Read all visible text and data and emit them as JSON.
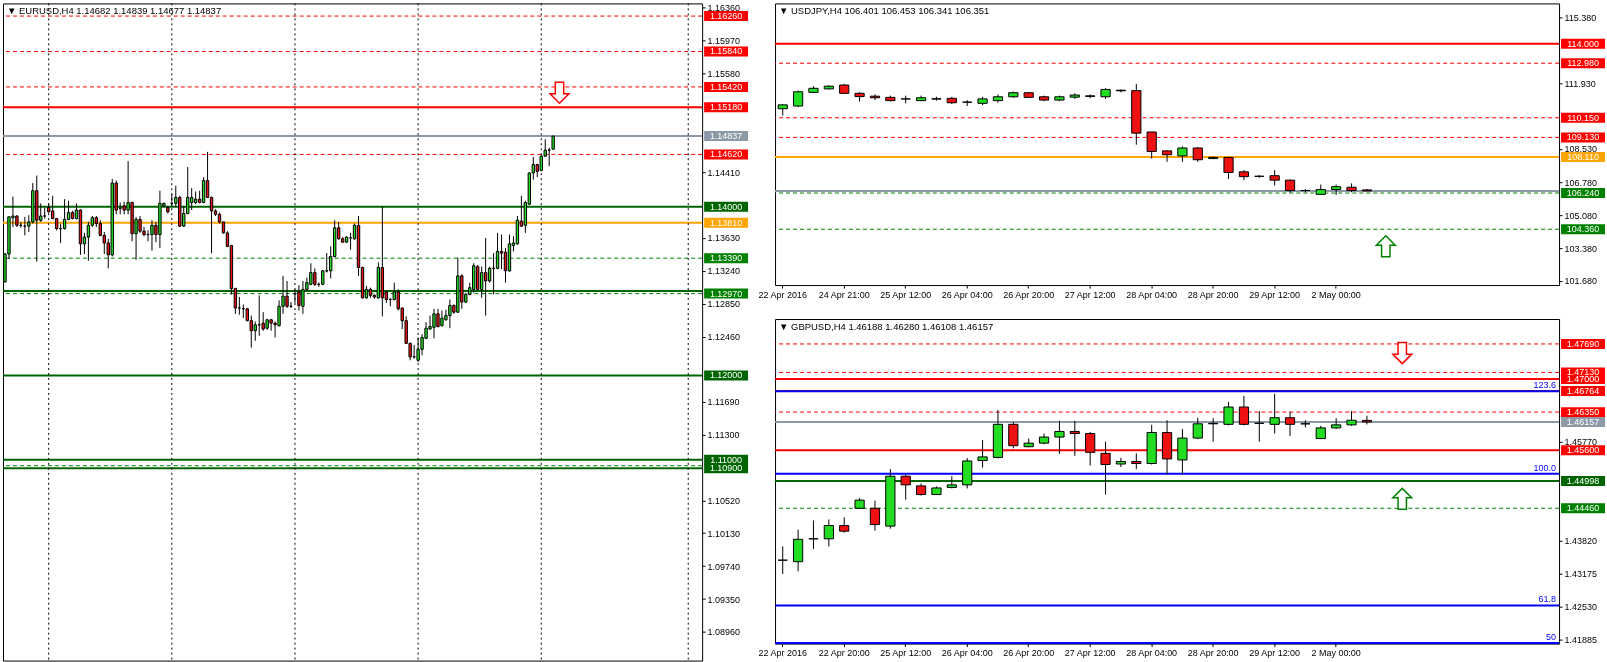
{
  "chart_data": [
    {
      "type": "candlestick",
      "title": "▼ EURUSD,H4 1.14682 1.14839 1.14677 1.14837",
      "categories": [
        null,
        null,
        null,
        null,
        null,
        null,
        null,
        null,
        null,
        null,
        null,
        null,
        null,
        null,
        null,
        null,
        null,
        null,
        null,
        null,
        null,
        null,
        null,
        null,
        null,
        null,
        null,
        null,
        null,
        null,
        null,
        null,
        null,
        null,
        null,
        null,
        null,
        null,
        null,
        null,
        null,
        null,
        null,
        null,
        null,
        null,
        null,
        null,
        null,
        null,
        null,
        null,
        null,
        null,
        null,
        null,
        null,
        null,
        null,
        null,
        null,
        null,
        null,
        null,
        null,
        null,
        null,
        null,
        null,
        null,
        null,
        null,
        null,
        null,
        null,
        null,
        null,
        null,
        null,
        null,
        null,
        null,
        null,
        null,
        null,
        null,
        null,
        null,
        null,
        null,
        null,
        null,
        null,
        null,
        null,
        null,
        null,
        null,
        null,
        null,
        null,
        null,
        null,
        null,
        null,
        null,
        null,
        null,
        null,
        null,
        null,
        null,
        null,
        null,
        null,
        null,
        null,
        null,
        null,
        null,
        null,
        null,
        null,
        null,
        null,
        null,
        null,
        null,
        null,
        null,
        null,
        null,
        null,
        null,
        null,
        null,
        null,
        null,
        null,
        null,
        null,
        null,
        null,
        null,
        null,
        null,
        null,
        null,
        null,
        null,
        null,
        null,
        null,
        null,
        null,
        null,
        null,
        null,
        null,
        null,
        null,
        null,
        null,
        null,
        null,
        null,
        null,
        null,
        null,
        null,
        null,
        null,
        null,
        null,
        null,
        null
      ],
      "ohlc": [
        [
          1.1311,
          1.1345,
          1.131,
          1.1344
        ],
        [
          1.1344,
          1.1389,
          1.1338,
          1.1388
        ],
        [
          1.1387,
          1.1412,
          1.1376,
          1.1389
        ],
        [
          1.1389,
          1.139,
          1.1376,
          1.1378
        ],
        [
          1.1378,
          1.1382,
          1.1375,
          1.1378
        ],
        [
          1.1377,
          1.1388,
          1.1366,
          1.1377
        ],
        [
          1.1377,
          1.139,
          1.137,
          1.1382
        ],
        [
          1.1382,
          1.1428,
          1.138,
          1.1419
        ],
        [
          1.1419,
          1.1437,
          1.1335,
          1.1384
        ],
        [
          1.1384,
          1.1404,
          1.1382,
          1.1389
        ],
        [
          1.1389,
          1.1399,
          1.1386,
          1.1389
        ],
        [
          1.1399,
          1.1404,
          1.1393,
          1.1394
        ],
        [
          1.1395,
          1.1413,
          1.1385,
          1.1386
        ],
        [
          1.1386,
          1.1386,
          1.1372,
          1.1374
        ],
        [
          1.1374,
          1.138,
          1.1357,
          1.1374
        ],
        [
          1.1374,
          1.1409,
          1.1373,
          1.1385
        ],
        [
          1.1385,
          1.1407,
          1.1384,
          1.1393
        ],
        [
          1.1393,
          1.1395,
          1.1385,
          1.1386
        ],
        [
          1.1386,
          1.1404,
          1.1385,
          1.1396
        ],
        [
          1.1396,
          1.1397,
          1.1343,
          1.1356
        ],
        [
          1.1356,
          1.1369,
          1.1344,
          1.1364
        ],
        [
          1.1364,
          1.1382,
          1.1336,
          1.1378
        ],
        [
          1.1378,
          1.1389,
          1.1376,
          1.1387
        ],
        [
          1.1387,
          1.1389,
          1.1376,
          1.138
        ],
        [
          1.138,
          1.1384,
          1.1365,
          1.1366
        ],
        [
          1.1366,
          1.137,
          1.1344,
          1.1357
        ],
        [
          1.1357,
          1.1362,
          1.1327,
          1.1343
        ],
        [
          1.1343,
          1.1433,
          1.1341,
          1.1428
        ],
        [
          1.1428,
          1.1431,
          1.1391,
          1.1396
        ],
        [
          1.1398,
          1.1405,
          1.1391,
          1.1398
        ],
        [
          1.1401,
          1.1406,
          1.1391,
          1.1396
        ],
        [
          1.1396,
          1.1454,
          1.1391,
          1.1405
        ],
        [
          1.1405,
          1.1406,
          1.1359,
          1.1368
        ],
        [
          1.1368,
          1.1388,
          1.1337,
          1.1385
        ],
        [
          1.1385,
          1.1389,
          1.1369,
          1.1371
        ],
        [
          1.1371,
          1.1376,
          1.1365,
          1.1367
        ],
        [
          1.1367,
          1.1372,
          1.1359,
          1.1367
        ],
        [
          1.1367,
          1.1384,
          1.1348,
          1.1378
        ],
        [
          1.1378,
          1.1382,
          1.1358,
          1.1367
        ],
        [
          1.1367,
          1.1419,
          1.1351,
          1.1404
        ],
        [
          1.1401,
          1.1405,
          1.14,
          1.1404
        ],
        [
          1.1399,
          1.1401,
          1.1392,
          1.1394
        ],
        [
          1.1404,
          1.1415,
          1.14,
          1.1404
        ],
        [
          1.1404,
          1.1425,
          1.14,
          1.1411
        ],
        [
          1.1411,
          1.1413,
          1.1376,
          1.1377
        ],
        [
          1.1377,
          1.1401,
          1.1376,
          1.1392
        ],
        [
          1.1392,
          1.1447,
          1.1391,
          1.1411
        ],
        [
          1.1405,
          1.1422,
          1.1396,
          1.1411
        ],
        [
          1.1405,
          1.1418,
          1.1403,
          1.1409
        ],
        [
          1.1409,
          1.1419,
          1.1404,
          1.1405
        ],
        [
          1.1405,
          1.1435,
          1.1404,
          1.1431
        ],
        [
          1.1431,
          1.1465,
          1.1411,
          1.1411
        ],
        [
          1.1411,
          1.1412,
          1.1345,
          1.1395
        ],
        [
          1.1395,
          1.1397,
          1.1389,
          1.1391
        ],
        [
          1.1391,
          1.1393,
          1.138,
          1.1382
        ],
        [
          1.1382,
          1.1382,
          1.1368,
          1.1369
        ],
        [
          1.1369,
          1.1371,
          1.1352,
          1.1353
        ],
        [
          1.1354,
          1.1355,
          1.1296,
          1.1303
        ],
        [
          1.1303,
          1.1304,
          1.1273,
          1.128
        ],
        [
          1.128,
          1.1293,
          1.1272,
          1.128
        ],
        [
          1.1279,
          1.1284,
          1.1268,
          1.1279
        ],
        [
          1.1279,
          1.128,
          1.1264,
          1.1265
        ],
        [
          1.1265,
          1.1271,
          1.1233,
          1.1253
        ],
        [
          1.1253,
          1.1264,
          1.1241,
          1.126
        ],
        [
          1.126,
          1.1295,
          1.1247,
          1.126
        ],
        [
          1.1262,
          1.1275,
          1.1253,
          1.1255
        ],
        [
          1.1256,
          1.1267,
          1.1254,
          1.1266
        ],
        [
          1.1266,
          1.1267,
          1.1253,
          1.1262
        ],
        [
          1.1262,
          1.1264,
          1.1245,
          1.126
        ],
        [
          1.1259,
          1.1289,
          1.1258,
          1.1282
        ],
        [
          1.1282,
          1.1318,
          1.1273,
          1.1294
        ],
        [
          1.1294,
          1.1312,
          1.128,
          1.1282
        ],
        [
          1.1282,
          1.1287,
          1.128,
          1.1282
        ],
        [
          1.1297,
          1.1302,
          1.1286,
          1.1297
        ],
        [
          1.1299,
          1.1307,
          1.1277,
          1.1283
        ],
        [
          1.1282,
          1.1312,
          1.1273,
          1.1302
        ],
        [
          1.1302,
          1.1316,
          1.13,
          1.131
        ],
        [
          1.1308,
          1.1333,
          1.1307,
          1.1322
        ],
        [
          1.1322,
          1.1327,
          1.1306,
          1.1308
        ],
        [
          1.1308,
          1.131,
          1.1305,
          1.1308
        ],
        [
          1.1308,
          1.1325,
          1.1307,
          1.1324
        ],
        [
          1.1324,
          1.1345,
          1.1322,
          1.1324
        ],
        [
          1.1324,
          1.1353,
          1.1315,
          1.1341
        ],
        [
          1.1341,
          1.1384,
          1.134,
          1.1375
        ],
        [
          1.1375,
          1.1382,
          1.1361,
          1.1362
        ],
        [
          1.1362,
          1.1364,
          1.1357,
          1.1358
        ],
        [
          1.1358,
          1.1365,
          1.1357,
          1.1364
        ],
        [
          1.1363,
          1.1369,
          1.1349,
          1.1363
        ],
        [
          1.1362,
          1.138,
          1.1361,
          1.1378
        ],
        [
          1.1378,
          1.1389,
          1.1318,
          1.1328
        ],
        [
          1.1328,
          1.1329,
          1.1291,
          1.1292
        ],
        [
          1.1292,
          1.1306,
          1.1291,
          1.1302
        ],
        [
          1.1302,
          1.1304,
          1.1292,
          1.1295
        ],
        [
          1.1295,
          1.1296,
          1.1291,
          1.1293
        ],
        [
          1.1292,
          1.1334,
          1.1291,
          1.1328
        ],
        [
          1.1328,
          1.14,
          1.127,
          1.1292
        ],
        [
          1.1299,
          1.13,
          1.1286,
          1.129
        ],
        [
          1.129,
          1.1292,
          1.1282,
          1.129
        ],
        [
          1.129,
          1.131,
          1.1289,
          1.1299
        ],
        [
          1.1299,
          1.1302,
          1.1277,
          1.1279
        ],
        [
          1.128,
          1.128,
          1.1255,
          1.1265
        ],
        [
          1.1265,
          1.127,
          1.1238,
          1.1238
        ],
        [
          1.1238,
          1.1239,
          1.1218,
          1.1222
        ],
        [
          1.1222,
          1.1236,
          1.122,
          1.1222
        ],
        [
          1.1218,
          1.1245,
          1.1216,
          1.1231
        ],
        [
          1.1231,
          1.1249,
          1.1224,
          1.1245
        ],
        [
          1.1244,
          1.1263,
          1.1243,
          1.1256
        ],
        [
          1.1255,
          1.1271,
          1.1254,
          1.1258
        ],
        [
          1.1257,
          1.1279,
          1.1244,
          1.1273
        ],
        [
          1.1273,
          1.1279,
          1.1257,
          1.1258
        ],
        [
          1.1259,
          1.1277,
          1.1258,
          1.1268
        ],
        [
          1.1266,
          1.1278,
          1.1265,
          1.1271
        ],
        [
          1.1271,
          1.129,
          1.1256,
          1.1283
        ],
        [
          1.1283,
          1.1284,
          1.1273,
          1.1275
        ],
        [
          1.1275,
          1.134,
          1.1274,
          1.1318
        ],
        [
          1.1318,
          1.132,
          1.1279,
          1.1287
        ],
        [
          1.1287,
          1.1298,
          1.1286,
          1.1296
        ],
        [
          1.1296,
          1.131,
          1.1295,
          1.1304
        ],
        [
          1.1302,
          1.1333,
          1.1298,
          1.133
        ],
        [
          1.1329,
          1.1331,
          1.1301,
          1.1302
        ],
        [
          1.1302,
          1.1329,
          1.1292,
          1.1322
        ],
        [
          1.1322,
          1.1363,
          1.1271,
          1.1312
        ],
        [
          1.1312,
          1.1329,
          1.131,
          1.1327
        ],
        [
          1.1327,
          1.1345,
          1.1296,
          1.1327
        ],
        [
          1.1327,
          1.1369,
          1.1326,
          1.1347
        ],
        [
          1.1347,
          1.1367,
          1.1326,
          1.1345
        ],
        [
          1.1346,
          1.1351,
          1.131,
          1.1324
        ],
        [
          1.1324,
          1.1367,
          1.1323,
          1.1356
        ],
        [
          1.1354,
          1.1365,
          1.1347,
          1.1357
        ],
        [
          1.1356,
          1.1389,
          1.1355,
          1.1384
        ],
        [
          1.1383,
          1.1413,
          1.1376,
          1.1377
        ],
        [
          1.1378,
          1.1407,
          1.1369,
          1.1405
        ],
        [
          1.1403,
          1.1441,
          1.1402,
          1.144
        ],
        [
          1.144,
          1.1459,
          1.1432,
          1.145
        ],
        [
          1.145,
          1.1451,
          1.1435,
          1.1442
        ],
        [
          1.1443,
          1.1461,
          1.1442,
          1.146
        ],
        [
          1.146,
          1.148,
          1.1459,
          1.1467
        ],
        [
          1.1467,
          1.147,
          1.1448,
          1.1467
        ],
        [
          1.14682,
          1.14839,
          1.14677,
          1.14837
        ],
        null,
        null,
        null,
        null,
        null,
        null,
        null,
        null,
        null,
        null,
        null,
        null,
        null,
        null,
        null,
        null,
        null,
        null,
        null,
        null,
        null,
        null,
        null,
        null,
        null,
        null,
        null,
        null,
        null,
        null,
        null,
        null,
        null,
        null,
        null,
        null,
        null
      ],
      "colors": [
        "#22dd22",
        "#22dd22",
        "#22dd22",
        "#ee1111",
        "#000000",
        "#000000",
        "#22dd22",
        "#22dd22",
        "#ee1111",
        "#22dd22",
        "#000000",
        "#ee1111",
        "#ee1111",
        "#ee1111",
        "#000000",
        "#22dd22",
        "#22dd22",
        "#ee1111",
        "#22dd22",
        "#ee1111",
        "#22dd22",
        "#22dd22",
        "#22dd22",
        "#ee1111",
        "#ee1111",
        "#ee1111",
        "#ee1111",
        "#22dd22",
        "#ee1111",
        "#000000",
        "#ee1111",
        "#22dd22",
        "#ee1111",
        "#22dd22",
        "#ee1111",
        "#ee1111",
        "#000000",
        "#22dd22",
        "#ee1111",
        "#22dd22",
        "#22dd22",
        "#ee1111",
        "#000000",
        "#22dd22",
        "#ee1111",
        "#22dd22",
        "#22dd22",
        "#22dd22",
        "#22dd22",
        "#ee1111",
        "#22dd22",
        "#ee1111",
        "#ee1111",
        "#ee1111",
        "#ee1111",
        "#ee1111",
        "#ee1111",
        "#ee1111",
        "#ee1111",
        "#000000",
        "#000000",
        "#ee1111",
        "#ee1111",
        "#22dd22",
        "#000000",
        "#ee1111",
        "#22dd22",
        "#ee1111",
        "#ee1111",
        "#22dd22",
        "#22dd22",
        "#ee1111",
        "#000000",
        "#000000",
        "#ee1111",
        "#22dd22",
        "#22dd22",
        "#22dd22",
        "#ee1111",
        "#000000",
        "#22dd22",
        "#000000",
        "#22dd22",
        "#22dd22",
        "#ee1111",
        "#ee1111",
        "#22dd22",
        "#000000",
        "#22dd22",
        "#ee1111",
        "#ee1111",
        "#22dd22",
        "#ee1111",
        "#ee1111",
        "#22dd22",
        "#ee1111",
        "#ee1111",
        "#000000",
        "#22dd22",
        "#ee1111",
        "#ee1111",
        "#ee1111",
        "#ee1111",
        "#000000",
        "#22dd22",
        "#22dd22",
        "#22dd22",
        "#22dd22",
        "#22dd22",
        "#ee1111",
        "#22dd22",
        "#22dd22",
        "#22dd22",
        "#ee1111",
        "#22dd22",
        "#ee1111",
        "#22dd22",
        "#22dd22",
        "#22dd22",
        "#ee1111",
        "#22dd22",
        "#ee1111",
        "#22dd22",
        "#000000",
        "#22dd22",
        "#ee1111",
        "#ee1111",
        "#22dd22",
        "#22dd22",
        "#22dd22",
        "#ee1111",
        "#22dd22",
        "#22dd22",
        "#22dd22",
        "#ee1111",
        "#22dd22",
        "#22dd22",
        "#000000",
        "#22dd22",
        null,
        null,
        null,
        null,
        null,
        null,
        null,
        null,
        null,
        null,
        null,
        null,
        null,
        null,
        null,
        null,
        null,
        null,
        null,
        null,
        null,
        null,
        null,
        null,
        null,
        null,
        null,
        null,
        null,
        null,
        null,
        null,
        null,
        null,
        null,
        null,
        null
      ],
      "ylim": [
        1.0862,
        1.1641
      ],
      "yticks": [
        {
          "value": 1.1636,
          "label": "1.16360"
        },
        {
          "value": 1.1597,
          "label": "1.15970"
        },
        {
          "value": 1.1558,
          "label": "1.15580"
        },
        {
          "value": 1.1441,
          "label": "1.14410"
        },
        {
          "value": 1.1363,
          "label": "1.13630"
        },
        {
          "value": 1.1324,
          "label": "1.13240"
        },
        {
          "value": 1.1285,
          "label": "1.12850"
        },
        {
          "value": 1.1246,
          "label": "1.12460"
        },
        {
          "value": 1.1169,
          "label": "1.11690"
        },
        {
          "value": 1.113,
          "label": "1.11300"
        },
        {
          "value": 1.1052,
          "label": "1.10520"
        },
        {
          "value": 1.1013,
          "label": "1.10130"
        },
        {
          "value": 1.0974,
          "label": "1.09740"
        },
        {
          "value": 1.0935,
          "label": "1.09350"
        },
        {
          "value": 1.0896,
          "label": "1.08960"
        }
      ],
      "tick_labels": "y",
      "ref_lines": [
        {
          "axis": "y",
          "value": 1.1626,
          "label": "1.16260",
          "color": "#ff0000",
          "line_style": "dashed"
        },
        {
          "axis": "y",
          "value": 1.1584,
          "label": "1.15840",
          "color": "#ff0000",
          "line_style": "dashed"
        },
        {
          "axis": "y",
          "value": 1.1542,
          "label": "1.15420",
          "color": "#ff0000",
          "line_style": "dashed"
        },
        {
          "axis": "y",
          "value": 1.1518,
          "label": "1.15180",
          "color": "#ff0000",
          "line_style": "solid"
        },
        {
          "axis": "y",
          "value": 1.14837,
          "label": "1.14837",
          "color": "#8c9aa8",
          "line_style": "solid"
        },
        {
          "axis": "y",
          "value": 1.1462,
          "label": "1.14620",
          "color": "#ff0000",
          "line_style": "dashed"
        },
        {
          "axis": "y",
          "value": 1.14,
          "label": "1.14000",
          "color": "#006400",
          "line_style": "solid"
        },
        {
          "axis": "y",
          "value": 1.1381,
          "label": "1.13810",
          "color": "#ffa500",
          "line_style": "solid"
        },
        {
          "axis": "y",
          "value": 1.1339,
          "label": "1.13390",
          "color": "#008000",
          "line_style": "dashed"
        },
        {
          "axis": "y",
          "value": 1.13,
          "color": "#006400",
          "line_style": "solid"
        },
        {
          "axis": "y",
          "value": 1.1297,
          "label": "1.12970",
          "color": "#008000",
          "line_style": "dashed"
        },
        {
          "axis": "y",
          "value": 1.12,
          "label": "1.12000",
          "color": "#006400",
          "line_style": "solid"
        },
        {
          "axis": "y",
          "value": 1.11,
          "label": "1.11000",
          "color": "#006400",
          "line_style": "solid"
        },
        {
          "axis": "y",
          "value": 1.1093,
          "color": "#008000",
          "line_style": "dashed"
        },
        {
          "axis": "y",
          "value": 1.109,
          "label": "1.10900",
          "color": "#006400",
          "line_style": "solid"
        }
      ]
    },
    {
      "type": "candlestick",
      "title": "▼ USDJPY,H4 106.401 106.453 106.341 106.351",
      "categories": [
        "22 Apr 2016",
        null,
        null,
        null,
        "24 Apr 21:00",
        null,
        null,
        null,
        "25 Apr 12:00",
        null,
        null,
        null,
        "26 Apr 04:00",
        null,
        null,
        null,
        "26 Apr 20:00",
        null,
        null,
        null,
        "27 Apr 12:00",
        null,
        null,
        null,
        "28 Apr 04:00",
        null,
        null,
        null,
        "28 Apr 20:00",
        null,
        null,
        null,
        "29 Apr 12:00",
        null,
        null,
        null,
        "2 May 00:00",
        null,
        null,
        null,
        null,
        null,
        null,
        null,
        null,
        null,
        null,
        null,
        null,
        null,
        null
      ],
      "ohlc": [
        [
          110.62,
          110.85,
          110.27,
          110.82
        ],
        [
          110.76,
          111.56,
          110.7,
          111.5
        ],
        [
          111.47,
          111.79,
          111.44,
          111.68
        ],
        [
          111.65,
          111.85,
          111.62,
          111.79
        ],
        [
          111.85,
          111.91,
          111.39,
          111.42
        ],
        [
          111.42,
          111.48,
          110.99,
          111.25
        ],
        [
          111.27,
          111.36,
          111.07,
          111.19
        ],
        [
          111.21,
          111.3,
          111.01,
          111.04
        ],
        [
          111.13,
          111.3,
          110.9,
          111.13
        ],
        [
          111.04,
          111.3,
          111.01,
          111.19
        ],
        [
          111.12,
          111.24,
          111.04,
          111.14
        ],
        [
          111.16,
          111.24,
          110.87,
          110.93
        ],
        [
          110.96,
          111.07,
          110.76,
          110.96
        ],
        [
          110.9,
          111.24,
          110.81,
          111.13
        ],
        [
          111.04,
          111.36,
          110.93,
          111.24
        ],
        [
          111.24,
          111.51,
          111.19,
          111.45
        ],
        [
          111.45,
          111.48,
          111.19,
          111.21
        ],
        [
          111.24,
          111.3,
          111.01,
          111.07
        ],
        [
          111.07,
          111.3,
          111.01,
          111.24
        ],
        [
          111.22,
          111.42,
          111.13,
          111.33
        ],
        [
          111.26,
          111.36,
          111.16,
          111.29
        ],
        [
          111.24,
          111.7,
          111.13,
          111.62
        ],
        [
          111.55,
          111.62,
          111.47,
          111.58
        ],
        [
          111.56,
          111.91,
          108.75,
          109.35
        ],
        [
          109.41,
          109.41,
          108.03,
          108.4
        ],
        [
          108.43,
          108.46,
          107.86,
          108.23
        ],
        [
          108.17,
          108.66,
          107.86,
          108.58
        ],
        [
          108.58,
          108.63,
          107.86,
          107.97
        ],
        [
          108.03,
          108.14,
          108.0,
          108.09
        ],
        [
          108.09,
          108.12,
          106.97,
          107.31
        ],
        [
          107.34,
          107.43,
          106.91,
          107.09
        ],
        [
          107.11,
          107.17,
          107.03,
          107.11
        ],
        [
          107.14,
          107.43,
          106.63,
          106.91
        ],
        [
          106.91,
          106.94,
          106.26,
          106.37
        ],
        [
          106.37,
          106.45,
          106.28,
          106.37
        ],
        [
          106.17,
          106.68,
          106.17,
          106.42
        ],
        [
          106.42,
          106.68,
          106.14,
          106.57
        ],
        [
          106.54,
          106.74,
          106.28,
          106.37
        ],
        [
          106.401,
          106.453,
          106.341,
          106.351
        ],
        null,
        null,
        null,
        null,
        null,
        null,
        null,
        null,
        null,
        null,
        null,
        null
      ],
      "colors": [
        "#22dd22",
        "#22dd22",
        "#22dd22",
        "#22dd22",
        "#ee1111",
        "#ee1111",
        "#ee1111",
        "#ee1111",
        "#000000",
        "#22dd22",
        "#22dd22",
        "#ee1111",
        "#000000",
        "#22dd22",
        "#22dd22",
        "#22dd22",
        "#ee1111",
        "#ee1111",
        "#22dd22",
        "#22dd22",
        "#22dd22",
        "#22dd22",
        "#22dd22",
        "#ee1111",
        "#ee1111",
        "#ee1111",
        "#22dd22",
        "#ee1111",
        "#22dd22",
        "#ee1111",
        "#ee1111",
        "#000000",
        "#ee1111",
        "#ee1111",
        "#000000",
        "#22dd22",
        "#22dd22",
        "#ee1111",
        "#ee1111",
        null,
        null,
        null,
        null,
        null,
        null,
        null,
        null,
        null,
        null,
        null,
        null
      ],
      "ylim": [
        101.46,
        116.09
      ],
      "yticks": [
        {
          "value": 115.38,
          "label": "115.380"
        },
        {
          "value": 111.93,
          "label": "111.930"
        },
        {
          "value": 108.53,
          "label": "108.530"
        },
        {
          "value": 106.78,
          "label": "106.780"
        },
        {
          "value": 105.08,
          "label": "105.080"
        },
        {
          "value": 103.38,
          "label": "103.380"
        },
        {
          "value": 101.68,
          "label": "101.680"
        }
      ],
      "ref_lines": [
        {
          "axis": "y",
          "value": 114.0,
          "label": "114.000",
          "color": "#ff0000",
          "line_style": "solid"
        },
        {
          "axis": "y",
          "value": 112.98,
          "label": "112.980",
          "color": "#ff0000",
          "line_style": "dashed"
        },
        {
          "axis": "y",
          "value": 110.15,
          "label": "110.150",
          "color": "#ff0000",
          "line_style": "dashed"
        },
        {
          "axis": "y",
          "value": 109.13,
          "label": "109.130",
          "color": "#ff0000",
          "line_style": "dashed"
        },
        {
          "axis": "y",
          "value": 108.11,
          "label": "108.110",
          "color": "#ffa500",
          "line_style": "solid"
        },
        {
          "axis": "y",
          "value": 106.351,
          "color": "#8c9aa8",
          "line_style": "solid"
        },
        {
          "axis": "y",
          "value": 106.24,
          "label": "106.240",
          "color": "#008000",
          "line_style": "dashed"
        },
        {
          "axis": "y",
          "value": 104.36,
          "label": "104.360",
          "color": "#008000",
          "line_style": "dashed"
        }
      ]
    },
    {
      "type": "candlestick",
      "title": "▼ GBPUSD,H4 1.46188 1.46280 1.46108 1.46157",
      "categories": [
        "22 Apr 2016",
        null,
        null,
        null,
        "22 Apr 20:00",
        null,
        null,
        null,
        "25 Apr 12:00",
        null,
        null,
        null,
        "26 Apr 04:00",
        null,
        null,
        null,
        "26 Apr 20:00",
        null,
        null,
        null,
        "27 Apr 12:00",
        null,
        null,
        null,
        "28 Apr 04:00",
        null,
        null,
        null,
        "28 Apr 20:00",
        null,
        null,
        null,
        "29 Apr 12:00",
        null,
        null,
        null,
        "2 May 00:00",
        null,
        null,
        null,
        null,
        null,
        null,
        null,
        null,
        null,
        null,
        null,
        null,
        null,
        null
      ],
      "ohlc": [
        [
          1.4344,
          1.4371,
          1.4317,
          1.4344
        ],
        [
          1.4341,
          1.4404,
          1.4322,
          1.4385
        ],
        [
          1.4386,
          1.4422,
          1.4366,
          1.4386
        ],
        [
          1.4386,
          1.4424,
          1.4371,
          1.4412
        ],
        [
          1.4412,
          1.4428,
          1.4398,
          1.4401
        ],
        [
          1.4446,
          1.4466,
          1.4445,
          1.4462
        ],
        [
          1.4446,
          1.4461,
          1.4402,
          1.4414
        ],
        [
          1.4411,
          1.4523,
          1.4406,
          1.4509
        ],
        [
          1.4509,
          1.4512,
          1.4463,
          1.4492
        ],
        [
          1.449,
          1.4495,
          1.4471,
          1.4473
        ],
        [
          1.4473,
          1.4489,
          1.4472,
          1.4486
        ],
        [
          1.4487,
          1.4509,
          1.4485,
          1.4492
        ],
        [
          1.4492,
          1.4545,
          1.4485,
          1.4539
        ],
        [
          1.454,
          1.458,
          1.4526,
          1.4547
        ],
        [
          1.4546,
          1.4639,
          1.4544,
          1.4611
        ],
        [
          1.4611,
          1.4615,
          1.4564,
          1.4569
        ],
        [
          1.4567,
          1.4583,
          1.4566,
          1.4574
        ],
        [
          1.4574,
          1.4593,
          1.4572,
          1.4586
        ],
        [
          1.4586,
          1.4618,
          1.4553,
          1.4597
        ],
        [
          1.4597,
          1.4618,
          1.4549,
          1.4593
        ],
        [
          1.4593,
          1.4596,
          1.453,
          1.4556
        ],
        [
          1.4554,
          1.4577,
          1.4473,
          1.4532
        ],
        [
          1.4533,
          1.4545,
          1.4527,
          1.4538
        ],
        [
          1.4538,
          1.4554,
          1.4523,
          1.4534
        ],
        [
          1.4534,
          1.461,
          1.4532,
          1.4595
        ],
        [
          1.4595,
          1.4619,
          1.4512,
          1.4543
        ],
        [
          1.4541,
          1.4602,
          1.4512,
          1.4584
        ],
        [
          1.4584,
          1.4624,
          1.4582,
          1.4612
        ],
        [
          1.4612,
          1.4623,
          1.4577,
          1.4613
        ],
        [
          1.4611,
          1.4655,
          1.4609,
          1.4645
        ],
        [
          1.4645,
          1.4667,
          1.4609,
          1.4611
        ],
        [
          1.4613,
          1.4637,
          1.4577,
          1.4613
        ],
        [
          1.4611,
          1.4671,
          1.4593,
          1.4624
        ],
        [
          1.4624,
          1.4636,
          1.4588,
          1.4611
        ],
        [
          1.4612,
          1.4619,
          1.4605,
          1.4612
        ],
        [
          1.4583,
          1.4608,
          1.4582,
          1.4604
        ],
        [
          1.4604,
          1.4623,
          1.4602,
          1.461
        ],
        [
          1.461,
          1.4637,
          1.4608,
          1.4619
        ],
        [
          1.46188,
          1.4628,
          1.46108,
          1.46157
        ],
        null,
        null,
        null,
        null,
        null,
        null,
        null,
        null,
        null,
        null,
        null,
        null
      ],
      "colors": [
        "#000000",
        "#22dd22",
        "#000000",
        "#22dd22",
        "#ee1111",
        "#22dd22",
        "#ee1111",
        "#22dd22",
        "#ee1111",
        "#ee1111",
        "#22dd22",
        "#22dd22",
        "#22dd22",
        "#22dd22",
        "#22dd22",
        "#ee1111",
        "#22dd22",
        "#22dd22",
        "#22dd22",
        "#ee1111",
        "#ee1111",
        "#ee1111",
        "#22dd22",
        "#ee1111",
        "#22dd22",
        "#ee1111",
        "#22dd22",
        "#22dd22",
        "#22dd22",
        "#22dd22",
        "#ee1111",
        "#000000",
        "#22dd22",
        "#ee1111",
        "#000000",
        "#22dd22",
        "#22dd22",
        "#22dd22",
        "#ee1111",
        null,
        null,
        null,
        null,
        null,
        null,
        null,
        null,
        null,
        null,
        null,
        null
      ],
      "ylim": [
        1.418,
        1.4818
      ],
      "yticks": [
        {
          "value": 1.4577,
          "label": "1.45770"
        },
        {
          "value": 1.4382,
          "label": "1.43820"
        },
        1.43175,
        {
          "value": 1.4253,
          "label": "1.42530"
        },
        1.41885
      ],
      "ref_lines": [
        {
          "axis": "y",
          "value": 1.4769,
          "label": "1.47690",
          "color": "#ff0000",
          "line_style": "dashed"
        },
        {
          "axis": "y",
          "value": 1.4713,
          "label": "1.47130",
          "color": "#ff0000",
          "line_style": "dashed"
        },
        {
          "axis": "y",
          "value": 1.47,
          "label": "1.47000",
          "color": "#ff0000",
          "line_style": "solid"
        },
        {
          "axis": "y",
          "value": 1.46764,
          "label": "1.46764",
          "color": "#ff0000",
          "line_style": "solid"
        },
        {
          "axis": "y",
          "value": 1.4676,
          "color": "#0000ff",
          "line_style": "solid"
        },
        {
          "axis": "y",
          "value": 1.4635,
          "label": "1.46350",
          "color": "#ff0000",
          "line_style": "dashed"
        },
        {
          "axis": "y",
          "value": 1.46157,
          "label": "1.46157",
          "color": "#8c9aa8",
          "line_style": "solid"
        },
        {
          "axis": "y",
          "value": 1.456,
          "label": "1.45600",
          "color": "#ff0000",
          "line_style": "solid"
        },
        {
          "axis": "y",
          "value": 1.4514,
          "color": "#0000ff",
          "line_style": "solid"
        },
        {
          "axis": "y",
          "value": 1.44998,
          "label": "1.44998",
          "color": "#006400",
          "line_style": "solid"
        },
        {
          "axis": "y",
          "value": 1.4446,
          "label": "1.44460",
          "color": "#008000",
          "line_style": "dashed"
        },
        {
          "axis": "y",
          "value": 1.4255,
          "color": "#0000ff",
          "line_style": "solid"
        },
        {
          "axis": "y",
          "value": 1.4181,
          "color": "#0000ff",
          "line_style": "solid"
        }
      ],
      "annotations": [
        {
          "text": "123.6",
          "y": 1.4676
        },
        {
          "text": "100.0",
          "y": 1.4514
        },
        {
          "text": "61.8",
          "y": 1.4255
        },
        {
          "text": "50",
          "y": 1.4181
        }
      ]
    }
  ]
}
